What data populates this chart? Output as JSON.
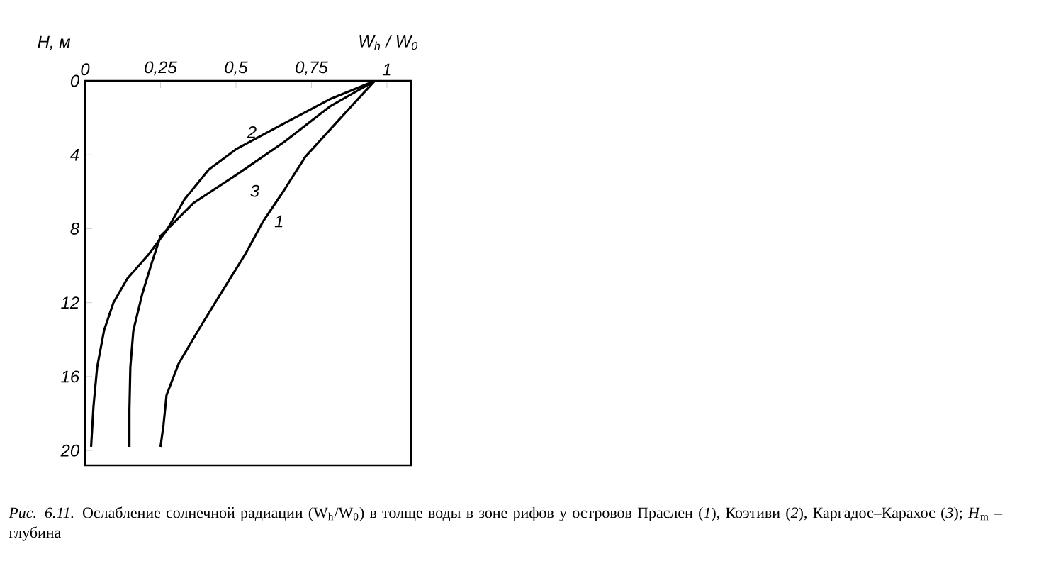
{
  "chart_data": {
    "type": "line",
    "xlabel": "W$_{h}$ / W$_{0}$",
    "ylabel": "H, м",
    "xlim": [
      0,
      1.08
    ],
    "xticks": [
      0,
      {
        "value": 0.25,
        "label": "0,25"
      },
      {
        "value": 0.5,
        "label": "0,5"
      },
      {
        "value": 0.75,
        "label": "0,75"
      },
      1
    ],
    "ylim": [
      20.8,
      0
    ],
    "yticks": [
      0,
      4,
      8,
      12,
      16,
      20
    ],
    "grid": false,
    "line_style": "solid",
    "series": [
      {
        "name": "1",
        "color": "#000000",
        "x": [
          0.96,
          0.875,
          0.73,
          0.66,
          0.59,
          0.53,
          0.45,
          0.375,
          0.31,
          0.27,
          0.26,
          0.25
        ],
        "values": [
          0,
          1.5,
          4.1,
          5.9,
          7.6,
          9.4,
          11.5,
          13.5,
          15.3,
          17,
          18.6,
          19.8
        ]
      },
      {
        "name": "2",
        "color": "#000000",
        "x": [
          0.96,
          0.81,
          0.66,
          0.5,
          0.41,
          0.33,
          0.27,
          0.21,
          0.14,
          0.094,
          0.063,
          0.04,
          0.028,
          0.02
        ],
        "values": [
          0,
          1,
          2.3,
          3.7,
          4.8,
          6.4,
          8.1,
          9.4,
          10.7,
          12,
          13.5,
          15.5,
          17.6,
          19.8
        ]
      },
      {
        "name": "3",
        "color": "#000000",
        "x": [
          0.96,
          0.81,
          0.66,
          0.5,
          0.36,
          0.25,
          0.22,
          0.19,
          0.16,
          0.15,
          0.147,
          0.147
        ],
        "values": [
          0,
          1.4,
          3.3,
          5.1,
          6.6,
          8.4,
          9.9,
          11.5,
          13.5,
          15.5,
          17.8,
          19.8
        ]
      }
    ],
    "annotations": [
      "*Рис. 6.11.* Ослабление солнечной радиации (W$_{h}$/W$_{0}$) в толще воды в зоне рифов у островов Праслен (*1*), Коэтиви (*2*), Каргадос–Карахос (*3*); *H*$_{m}$ – глубина"
    ]
  }
}
